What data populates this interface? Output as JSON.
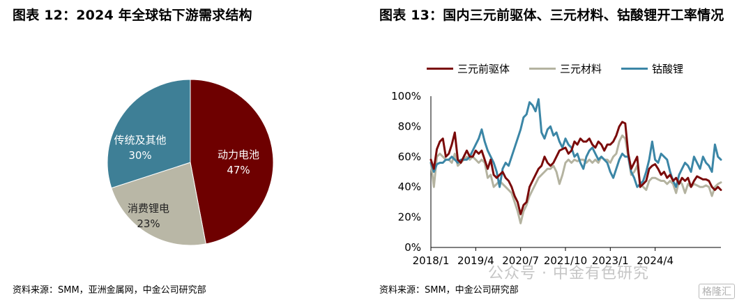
{
  "left": {
    "title": "图表 12：2024 年全球钴下游需求结构",
    "source": "资料来源：SMM，亚洲金属网，中金公司研究部",
    "chart_data": {
      "type": "pie",
      "slices": [
        {
          "label": "动力电池",
          "pct_label": "47%",
          "value": 47,
          "color": "#6e0000"
        },
        {
          "label": "消费锂电",
          "pct_label": "23%",
          "value": 23,
          "color": "#b9b7a6"
        },
        {
          "label": "传统及其他",
          "pct_label": "30%",
          "value": 30,
          "color": "#3e7f96"
        }
      ]
    }
  },
  "right": {
    "title": "图表 13：国内三元前驱体、三元材料、钴酸锂开工率情况",
    "source": "资料来源：SMM，中金公司研究部",
    "chart_data": {
      "type": "line",
      "ylim": [
        0,
        100
      ],
      "yticks": [
        "0%",
        "20%",
        "40%",
        "60%",
        "80%",
        "100%"
      ],
      "xticks": [
        "2018/1",
        "2019/4",
        "2020/7",
        "2021/10",
        "2023/1",
        "2024/4"
      ],
      "x_start": "2018/1",
      "x_end": "2024/12",
      "series": [
        {
          "name": "三元前驱体",
          "color": "#7a0a0a",
          "values": [
            58,
            52,
            65,
            70,
            72,
            60,
            62,
            68,
            76,
            58,
            56,
            60,
            64,
            60,
            60,
            64,
            62,
            64,
            58,
            52,
            58,
            48,
            46,
            48,
            50,
            46,
            44,
            40,
            34,
            30,
            22,
            28,
            30,
            40,
            44,
            48,
            52,
            54,
            60,
            56,
            54,
            56,
            60,
            64,
            65,
            66,
            62,
            64,
            70,
            68,
            72,
            70,
            70,
            72,
            68,
            66,
            70,
            68,
            64,
            68,
            68,
            70,
            74,
            80,
            83,
            82,
            62,
            52,
            56,
            60,
            40,
            42,
            44,
            52,
            54,
            55,
            52,
            48,
            50,
            46,
            48,
            44,
            46,
            42,
            46,
            44,
            46,
            40,
            44,
            47,
            46,
            45,
            45,
            44,
            40,
            38,
            40,
            38
          ]
        },
        {
          "name": "三元材料",
          "color": "#b4b3a0",
          "values": [
            56,
            40,
            60,
            62,
            60,
            58,
            58,
            56,
            62,
            54,
            56,
            58,
            60,
            58,
            60,
            58,
            56,
            58,
            56,
            46,
            48,
            40,
            42,
            44,
            42,
            40,
            38,
            36,
            30,
            24,
            16,
            24,
            28,
            34,
            38,
            42,
            46,
            48,
            50,
            52,
            52,
            54,
            50,
            42,
            48,
            56,
            58,
            56,
            58,
            57,
            58,
            58,
            56,
            58,
            56,
            58,
            56,
            60,
            58,
            58,
            56,
            60,
            62,
            70,
            74,
            72,
            60,
            48,
            50,
            54,
            42,
            40,
            38,
            44,
            46,
            46,
            45,
            44,
            44,
            42,
            44,
            42,
            36,
            44,
            42,
            36,
            42,
            40,
            42,
            41,
            40,
            40,
            41,
            40,
            34,
            40,
            42,
            43
          ]
        },
        {
          "name": "钴酸锂",
          "color": "#3b86a6",
          "values": [
            56,
            50,
            55,
            56,
            56,
            58,
            58,
            60,
            58,
            56,
            58,
            58,
            58,
            60,
            64,
            68,
            72,
            78,
            70,
            64,
            60,
            56,
            50,
            40,
            52,
            56,
            54,
            60,
            66,
            72,
            78,
            86,
            88,
            96,
            94,
            90,
            98,
            76,
            72,
            78,
            80,
            74,
            76,
            70,
            66,
            72,
            68,
            66,
            60,
            62,
            56,
            52,
            60,
            64,
            66,
            62,
            58,
            60,
            58,
            56,
            50,
            46,
            52,
            58,
            62,
            60,
            60,
            50,
            46,
            40,
            42,
            44,
            50,
            58,
            70,
            58,
            56,
            62,
            60,
            58,
            50,
            44,
            40,
            48,
            52,
            56,
            54,
            50,
            60,
            56,
            52,
            60,
            56,
            54,
            50,
            68,
            60,
            58
          ]
        }
      ]
    },
    "watermark": "公众号 · 中金有色研究",
    "logo_text": "格隆汇"
  }
}
